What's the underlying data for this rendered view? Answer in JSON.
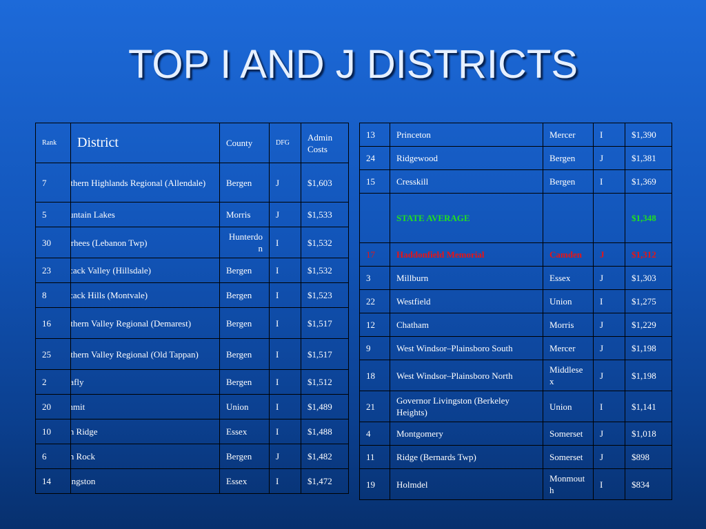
{
  "title": "TOP I AND J DISTRICTS",
  "colors": {
    "highlight_green": "#22e01f",
    "highlight_red": "#e81414",
    "background": "#1255b9"
  },
  "left_table": {
    "headers": {
      "rank": "Rank",
      "district": "District",
      "county": "County",
      "dfg": "DFG",
      "admin_costs": "Admin Costs"
    },
    "rows": [
      {
        "rank": "7",
        "district": "Northern Highlands Regional (Allendale)",
        "county": "Bergen",
        "dfg": "J",
        "cost": "$1,603"
      },
      {
        "rank": "5",
        "district": "Mountain Lakes",
        "county": "Morris",
        "dfg": "J",
        "cost": "$1,533"
      },
      {
        "rank": "30",
        "district": "Voorhees (Lebanon Twp)",
        "county": "Hunterdon",
        "dfg": "I",
        "cost": "$1,532"
      },
      {
        "rank": "23",
        "district": "Pascack Valley (Hillsdale)",
        "county": "Bergen",
        "dfg": "I",
        "cost": "$1,532"
      },
      {
        "rank": "8",
        "district": "Pascack Hills (Montvale)",
        "county": "Bergen",
        "dfg": "I",
        "cost": "$1,523"
      },
      {
        "rank": "16",
        "district": "Northern Valley Regional (Demarest)",
        "county": "Bergen",
        "dfg": "I",
        "cost": "$1,517"
      },
      {
        "rank": "25",
        "district": "Northern Valley Regional (Old Tappan)",
        "county": "Bergen",
        "dfg": "I",
        "cost": "$1,517"
      },
      {
        "rank": "2",
        "district": "Tenafly",
        "county": "Bergen",
        "dfg": "I",
        "cost": "$1,512"
      },
      {
        "rank": "20",
        "district": "Summit",
        "county": "Union",
        "dfg": "I",
        "cost": "$1,489"
      },
      {
        "rank": "10",
        "district": "Glen Ridge",
        "county": "Essex",
        "dfg": "I",
        "cost": "$1,488"
      },
      {
        "rank": "6",
        "district": "Glen Rock",
        "county": "Bergen",
        "dfg": "J",
        "cost": "$1,482"
      },
      {
        "rank": "14",
        "district": "Livingston",
        "county": "Essex",
        "dfg": "I",
        "cost": "$1,472"
      }
    ]
  },
  "right_table": {
    "rows": [
      {
        "rank": "13",
        "district": "Princeton",
        "county": "Mercer",
        "dfg": "I",
        "cost": "$1,390"
      },
      {
        "rank": "24",
        "district": "Ridgewood",
        "county": "Bergen",
        "dfg": "J",
        "cost": "$1,381"
      },
      {
        "rank": "15",
        "district": "Cresskill",
        "county": "Bergen",
        "dfg": "I",
        "cost": "$1,369"
      },
      {
        "rank": "",
        "district": "STATE AVERAGE",
        "county": "",
        "dfg": "",
        "cost": "$1,348"
      },
      {
        "rank": "17",
        "district": "Haddonfield Memorial",
        "county": "Camden",
        "dfg": "J",
        "cost": "$1,312"
      },
      {
        "rank": "3",
        "district": "Millburn",
        "county": "Essex",
        "dfg": "J",
        "cost": "$1,303"
      },
      {
        "rank": "22",
        "district": "Westfield",
        "county": "Union",
        "dfg": "I",
        "cost": "$1,275"
      },
      {
        "rank": "12",
        "district": "Chatham",
        "county": "Morris",
        "dfg": "J",
        "cost": "$1,229"
      },
      {
        "rank": "9",
        "district": "West Windsor–Plainsboro South",
        "county": "Mercer",
        "dfg": "J",
        "cost": "$1,198"
      },
      {
        "rank": "18",
        "district": "West Windsor–Plainsboro North",
        "county": "Middlesex",
        "dfg": "J",
        "cost": "$1,198"
      },
      {
        "rank": "21",
        "district": "Governor Livingston (Berkeley Heights)",
        "county": "Union",
        "dfg": "I",
        "cost": "$1,141"
      },
      {
        "rank": "4",
        "district": "Montgomery",
        "county": "Somerset",
        "dfg": "J",
        "cost": "$1,018"
      },
      {
        "rank": "11",
        "district": "Ridge (Bernards Twp)",
        "county": "Somerset",
        "dfg": "J",
        "cost": "$898"
      },
      {
        "rank": "19",
        "district": "Holmdel",
        "county": "Monmouth",
        "dfg": "I",
        "cost": "$834"
      }
    ]
  }
}
